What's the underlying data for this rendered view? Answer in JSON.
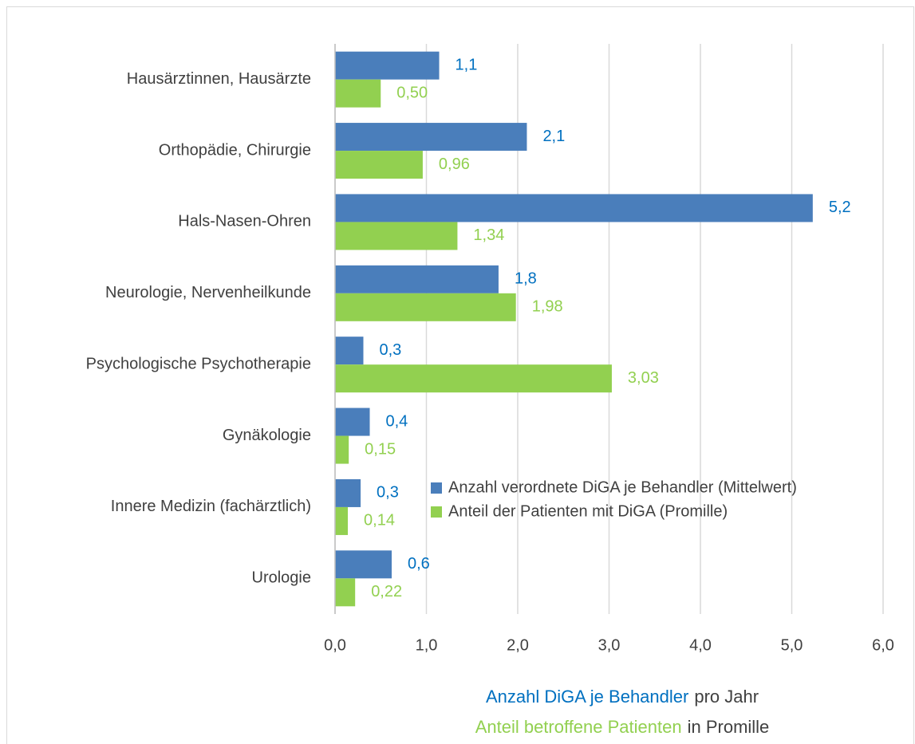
{
  "chart_data": {
    "type": "bar",
    "orientation": "horizontal",
    "categories": [
      "Hausärztinnen, Hausärzte",
      "Orthopädie, Chirurgie",
      "Hals-Nasen-Ohren",
      "Neurologie, Nervenheilkunde",
      "Psychologische Psychotherapie",
      "Gynäkologie",
      "Innere Medizin (fachärztlich)",
      "Urologie"
    ],
    "series": [
      {
        "name": "Anzahl verordnete DiGA je Behandler (Mittelwert)",
        "color": "#4a7ebb",
        "label_color": "#0070c0",
        "values": [
          1.14,
          2.1,
          5.23,
          1.79,
          0.31,
          0.38,
          0.28,
          0.62
        ],
        "value_labels": [
          "1,1",
          "2,1",
          "5,2",
          "1,8",
          "0,3",
          "0,4",
          "0,3",
          "0,6"
        ]
      },
      {
        "name": "Anteil der Patienten mit DiGA (Promille)",
        "color": "#92d050",
        "label_color": "#92d050",
        "values": [
          0.5,
          0.96,
          1.34,
          1.98,
          3.03,
          0.15,
          0.14,
          0.22
        ],
        "value_labels": [
          "0,50",
          "0,96",
          "1,34",
          "1,98",
          "3,03",
          "0,15",
          "0,14",
          "0,22"
        ]
      }
    ],
    "xlim": [
      0,
      6
    ],
    "xticks": [
      {
        "value": 0,
        "label": "0,0"
      },
      {
        "value": 1,
        "label": "1,0"
      },
      {
        "value": 2,
        "label": "2,0"
      },
      {
        "value": 3,
        "label": "3,0"
      },
      {
        "value": 4,
        "label": "4,0"
      },
      {
        "value": 5,
        "label": "5,0"
      },
      {
        "value": 6,
        "label": "6,0"
      }
    ],
    "grid": true,
    "legend_position": "right",
    "x_label": [
      [
        {
          "text": "Anzahl DiGA je Behandler",
          "color": "#0070c0"
        },
        {
          "text": "pro Jahr",
          "color": "#404040"
        }
      ],
      [
        {
          "text": "Anteil betroffene Patienten",
          "color": "#92d050"
        },
        {
          "text": "in Promille",
          "color": "#404040"
        }
      ]
    ]
  }
}
